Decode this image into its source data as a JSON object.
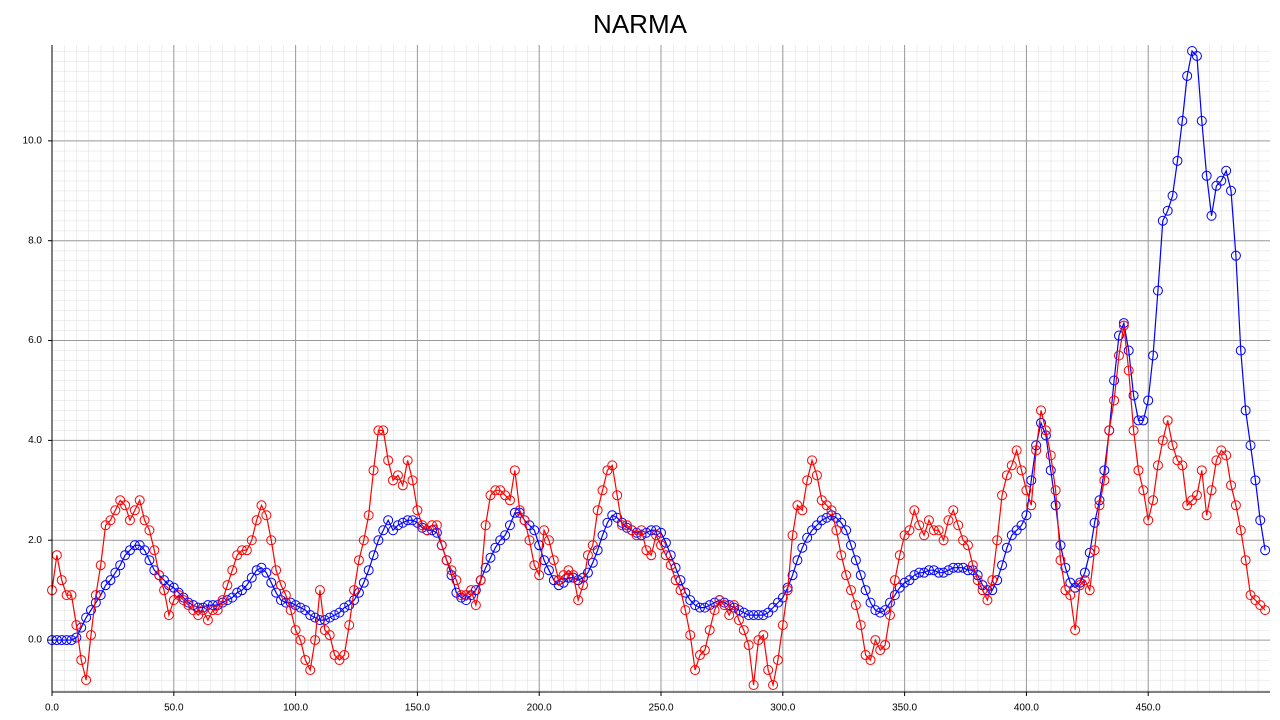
{
  "chart_data": {
    "type": "line",
    "title": "NARMA",
    "markers": "circle",
    "grid": true,
    "xlim": [
      0,
      500
    ],
    "ylim": [
      -1.04,
      11.92
    ],
    "xticks": [
      {
        "value": 0,
        "label": "0.0"
      },
      {
        "value": 50,
        "label": "50.0"
      },
      {
        "value": 100,
        "label": "100.0"
      },
      {
        "value": 150,
        "label": "150.0"
      },
      {
        "value": 200,
        "label": "200.0"
      },
      {
        "value": 250,
        "label": "250.0"
      },
      {
        "value": 300,
        "label": "300.0"
      },
      {
        "value": 350,
        "label": "350.0"
      },
      {
        "value": 400,
        "label": "400.0"
      },
      {
        "value": 450,
        "label": "450.0"
      }
    ],
    "yticks": [
      {
        "value": 0,
        "label": "0.0"
      },
      {
        "value": 2,
        "label": "2.0"
      },
      {
        "value": 4,
        "label": "4.0"
      },
      {
        "value": 6,
        "label": "6.0"
      },
      {
        "value": 8,
        "label": "8.0"
      },
      {
        "value": 10,
        "label": "10.0"
      }
    ],
    "x": [
      0,
      2,
      4,
      6,
      8,
      10,
      12,
      14,
      16,
      18,
      20,
      22,
      24,
      26,
      28,
      30,
      32,
      34,
      36,
      38,
      40,
      42,
      44,
      46,
      48,
      50,
      52,
      54,
      56,
      58,
      60,
      62,
      64,
      66,
      68,
      70,
      72,
      74,
      76,
      78,
      80,
      82,
      84,
      86,
      88,
      90,
      92,
      94,
      96,
      98,
      100,
      102,
      104,
      106,
      108,
      110,
      112,
      114,
      116,
      118,
      120,
      122,
      124,
      126,
      128,
      130,
      132,
      134,
      136,
      138,
      140,
      142,
      144,
      146,
      148,
      150,
      152,
      154,
      156,
      158,
      160,
      162,
      164,
      166,
      168,
      170,
      172,
      174,
      176,
      178,
      180,
      182,
      184,
      186,
      188,
      190,
      192,
      194,
      196,
      198,
      200,
      202,
      204,
      206,
      208,
      210,
      212,
      214,
      216,
      218,
      220,
      222,
      224,
      226,
      228,
      230,
      232,
      234,
      236,
      238,
      240,
      242,
      244,
      246,
      248,
      250,
      252,
      254,
      256,
      258,
      260,
      262,
      264,
      266,
      268,
      270,
      272,
      274,
      276,
      278,
      280,
      282,
      284,
      286,
      288,
      290,
      292,
      294,
      296,
      298,
      300,
      302,
      304,
      306,
      308,
      310,
      312,
      314,
      316,
      318,
      320,
      322,
      324,
      326,
      328,
      330,
      332,
      334,
      336,
      338,
      340,
      342,
      344,
      346,
      348,
      350,
      352,
      354,
      356,
      358,
      360,
      362,
      364,
      366,
      368,
      370,
      372,
      374,
      376,
      378,
      380,
      382,
      384,
      386,
      388,
      390,
      392,
      394,
      396,
      398,
      400,
      402,
      404,
      406,
      408,
      410,
      412,
      414,
      416,
      418,
      420,
      422,
      424,
      426,
      428,
      430,
      432,
      434,
      436,
      438,
      440,
      442,
      444,
      446,
      448,
      450,
      452,
      454,
      456,
      458,
      460,
      462,
      464,
      466,
      468,
      470,
      472,
      474,
      476,
      478,
      480,
      482,
      484,
      486,
      488,
      490,
      492,
      494,
      496,
      498
    ],
    "series": [
      {
        "color": "#0000ff",
        "values": [
          0,
          0,
          0,
          0,
          0,
          0.05,
          0.25,
          0.45,
          0.6,
          0.75,
          0.9,
          1.1,
          1.2,
          1.35,
          1.5,
          1.7,
          1.8,
          1.9,
          1.9,
          1.8,
          1.6,
          1.4,
          1.3,
          1.2,
          1.1,
          1.05,
          0.95,
          0.85,
          0.75,
          0.7,
          0.65,
          0.65,
          0.7,
          0.7,
          0.7,
          0.75,
          0.8,
          0.85,
          0.95,
          1.0,
          1.1,
          1.25,
          1.4,
          1.45,
          1.35,
          1.15,
          0.95,
          0.8,
          0.75,
          0.75,
          0.7,
          0.65,
          0.6,
          0.5,
          0.45,
          0.4,
          0.4,
          0.45,
          0.5,
          0.55,
          0.65,
          0.7,
          0.8,
          0.95,
          1.15,
          1.4,
          1.7,
          2.0,
          2.2,
          2.4,
          2.2,
          2.3,
          2.35,
          2.4,
          2.4,
          2.35,
          2.25,
          2.2,
          2.2,
          2.15,
          1.9,
          1.6,
          1.3,
          0.95,
          0.85,
          0.8,
          0.9,
          1.0,
          1.2,
          1.45,
          1.65,
          1.85,
          2.0,
          2.1,
          2.3,
          2.55,
          2.55,
          2.4,
          2.3,
          2.2,
          1.9,
          1.6,
          1.4,
          1.2,
          1.1,
          1.15,
          1.25,
          1.25,
          1.2,
          1.25,
          1.35,
          1.55,
          1.8,
          2.1,
          2.35,
          2.5,
          2.45,
          2.35,
          2.25,
          2.2,
          2.15,
          2.1,
          2.15,
          2.2,
          2.2,
          2.15,
          1.95,
          1.7,
          1.45,
          1.2,
          0.95,
          0.8,
          0.7,
          0.65,
          0.65,
          0.7,
          0.75,
          0.8,
          0.75,
          0.7,
          0.65,
          0.6,
          0.55,
          0.5,
          0.5,
          0.5,
          0.5,
          0.55,
          0.65,
          0.75,
          0.85,
          1.05,
          1.3,
          1.6,
          1.85,
          2.05,
          2.2,
          2.3,
          2.4,
          2.45,
          2.5,
          2.45,
          2.35,
          2.2,
          1.9,
          1.6,
          1.3,
          1.0,
          0.75,
          0.6,
          0.55,
          0.6,
          0.75,
          0.9,
          1.05,
          1.15,
          1.2,
          1.3,
          1.35,
          1.35,
          1.4,
          1.4,
          1.35,
          1.35,
          1.4,
          1.45,
          1.45,
          1.45,
          1.4,
          1.4,
          1.3,
          1.1,
          1.0,
          1.0,
          1.2,
          1.5,
          1.85,
          2.1,
          2.2,
          2.3,
          2.5,
          3.2,
          3.9,
          4.35,
          4.1,
          3.4,
          2.7,
          1.9,
          1.45,
          1.15,
          1.05,
          1.15,
          1.35,
          1.75,
          2.35,
          2.8,
          3.4,
          4.2,
          5.2,
          6.1,
          6.35,
          5.8,
          4.9,
          4.4,
          4.4,
          4.8,
          5.7,
          7.0,
          8.4,
          8.6,
          8.9,
          9.6,
          10.4,
          11.3,
          11.8,
          11.7,
          10.4,
          9.3,
          8.5,
          9.1,
          9.2,
          9.4,
          9.0,
          7.7,
          5.8,
          4.6,
          3.9,
          3.2,
          2.4,
          1.8
        ]
      },
      {
        "color": "#ff0000",
        "values": [
          1.0,
          1.7,
          1.2,
          0.9,
          0.9,
          0.3,
          -0.4,
          -0.8,
          0.1,
          0.9,
          1.5,
          2.3,
          2.4,
          2.6,
          2.8,
          2.7,
          2.4,
          2.6,
          2.8,
          2.4,
          2.2,
          1.8,
          1.3,
          1.0,
          0.5,
          0.8,
          0.9,
          0.8,
          0.7,
          0.6,
          0.5,
          0.6,
          0.4,
          0.6,
          0.6,
          0.8,
          1.1,
          1.4,
          1.7,
          1.8,
          1.8,
          2.0,
          2.4,
          2.7,
          2.5,
          2.0,
          1.4,
          1.1,
          0.9,
          0.6,
          0.2,
          0.0,
          -0.4,
          -0.6,
          0.0,
          1.0,
          0.2,
          0.1,
          -0.3,
          -0.4,
          -0.3,
          0.3,
          1.0,
          1.6,
          2.0,
          2.5,
          3.4,
          4.2,
          4.2,
          3.6,
          3.2,
          3.3,
          3.1,
          3.6,
          3.2,
          2.6,
          2.3,
          2.2,
          2.3,
          2.3,
          1.9,
          1.6,
          1.4,
          1.2,
          0.9,
          0.9,
          1.0,
          0.7,
          1.2,
          2.3,
          2.9,
          3.0,
          3.0,
          2.9,
          2.8,
          3.4,
          2.6,
          2.4,
          2.0,
          1.5,
          1.3,
          2.2,
          2.0,
          1.6,
          1.2,
          1.3,
          1.4,
          1.3,
          0.8,
          1.1,
          1.7,
          1.9,
          2.6,
          3.0,
          3.4,
          3.5,
          2.9,
          2.3,
          2.3,
          2.2,
          2.1,
          2.2,
          1.8,
          1.7,
          2.1,
          1.9,
          1.7,
          1.5,
          1.2,
          1.0,
          0.6,
          0.1,
          -0.6,
          -0.3,
          -0.2,
          0.2,
          0.6,
          0.8,
          0.7,
          0.5,
          0.7,
          0.4,
          0.2,
          -0.1,
          -0.9,
          0.0,
          0.1,
          -0.6,
          -0.9,
          -0.4,
          0.3,
          1.0,
          2.1,
          2.7,
          2.6,
          3.2,
          3.6,
          3.3,
          2.8,
          2.7,
          2.6,
          2.2,
          1.7,
          1.3,
          1.0,
          0.7,
          0.3,
          -0.3,
          -0.4,
          0.0,
          -0.2,
          -0.1,
          0.5,
          1.2,
          1.7,
          2.1,
          2.2,
          2.6,
          2.3,
          2.1,
          2.4,
          2.2,
          2.2,
          2.0,
          2.4,
          2.6,
          2.3,
          2.0,
          1.9,
          1.5,
          1.2,
          1.0,
          0.8,
          1.2,
          2.0,
          2.9,
          3.3,
          3.5,
          3.8,
          3.4,
          3.0,
          2.7,
          3.8,
          4.6,
          4.2,
          3.7,
          3.0,
          1.6,
          1.0,
          0.9,
          0.2,
          1.1,
          1.2,
          1.0,
          1.8,
          2.7,
          3.2,
          4.2,
          4.8,
          5.7,
          6.3,
          5.4,
          4.2,
          3.4,
          3.0,
          2.4,
          2.8,
          3.5,
          4.0,
          4.4,
          3.9,
          3.6,
          3.5,
          2.7,
          2.8,
          2.9,
          3.4,
          2.5,
          3.0,
          3.6,
          3.8,
          3.7,
          3.1,
          2.7,
          2.2,
          1.6,
          0.9,
          0.8,
          0.7,
          0.6
        ]
      }
    ]
  }
}
